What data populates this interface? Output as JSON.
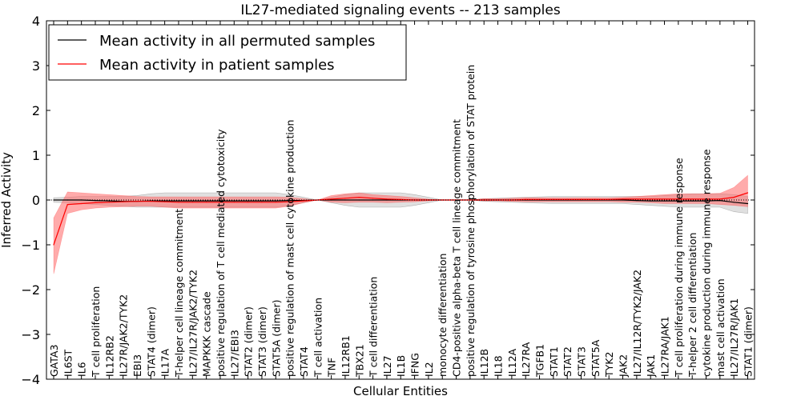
{
  "chart_data": {
    "type": "line",
    "title": "IL27-mediated signaling events -- 213 samples",
    "xlabel": "Cellular Entities",
    "ylabel": "Inferred Activity",
    "ylim": [
      -4,
      4
    ],
    "yticks": [
      -4,
      -3,
      -2,
      -1,
      0,
      1,
      2,
      3,
      4
    ],
    "ytick_labels": [
      "−4",
      "−3",
      "−2",
      "−1",
      "0",
      "1",
      "2",
      "3",
      "4"
    ],
    "legend_position": "top-left",
    "categories": [
      "GATA3",
      "IL6ST",
      "IL6",
      "T cell proliferation",
      "IL12RB2",
      "IL27R/JAK2/TYK2",
      "EBI3",
      "STAT4 (dimer)",
      "IL17A",
      "T-helper cell lineage commitment",
      "IL27/IL27R/JAK2/TYK2",
      "MAPKKK cascade",
      "positive regulation of T cell mediated cytotoxicity",
      "IL27/EBI3",
      "STAT2 (dimer)",
      "STAT3 (dimer)",
      "STAT5A (dimer)",
      "positive regulation of mast cell cytokine production",
      "STAT4",
      "T cell activation",
      "TNF",
      "IL12RB1",
      "TBX21",
      "T cell differentiation",
      "IL27",
      "IL1B",
      "IFNG",
      "IL2",
      "monocyte differentiation",
      "CD4-positive alpha-beta T cell lineage commitment",
      "positive regulation of tyrosine phosphorylation of STAT protein",
      "IL12B",
      "IL18",
      "IL12A",
      "IL27RA",
      "TGFB1",
      "STAT1",
      "STAT2",
      "STAT3",
      "STAT5A",
      "TYK2",
      "JAK2",
      "IL27/IL12R/TYK2/JAK2",
      "JAK1",
      "IL27RA/JAK1",
      "T cell proliferation during immune response",
      "T-helper 2 cell differentiation",
      "cytokine production during immune response",
      "mast cell activation",
      "IL27/IL27R/JAK1",
      "STAT1 (dimer)"
    ],
    "series": [
      {
        "name": "Mean activity in all permuted samples",
        "color": "#000000",
        "band_color": "#bbbbbb",
        "values": [
          0.0,
          0.0,
          0.0,
          -0.01,
          -0.02,
          -0.03,
          -0.03,
          -0.02,
          -0.02,
          -0.02,
          -0.02,
          -0.02,
          -0.02,
          -0.02,
          -0.02,
          -0.02,
          -0.02,
          -0.01,
          -0.01,
          0.0,
          0.0,
          0.0,
          0.0,
          0.0,
          0.0,
          0.0,
          0.0,
          0.0,
          0.0,
          0.0,
          0.0,
          0.0,
          0.0,
          0.0,
          0.0,
          0.0,
          0.0,
          0.0,
          0.0,
          0.0,
          0.0,
          0.0,
          -0.01,
          -0.02,
          -0.02,
          -0.02,
          -0.02,
          -0.02,
          -0.01,
          -0.05,
          -0.08
        ],
        "lower": [
          -0.05,
          -0.06,
          -0.08,
          -0.1,
          -0.12,
          -0.14,
          -0.16,
          -0.16,
          -0.16,
          -0.16,
          -0.16,
          -0.16,
          -0.16,
          -0.16,
          -0.16,
          -0.16,
          -0.16,
          -0.12,
          -0.06,
          0.0,
          -0.06,
          -0.12,
          -0.16,
          -0.16,
          -0.16,
          -0.16,
          -0.12,
          -0.06,
          0.0,
          0.0,
          0.0,
          -0.03,
          -0.04,
          -0.05,
          -0.06,
          -0.07,
          -0.08,
          -0.08,
          -0.08,
          -0.08,
          -0.08,
          -0.08,
          -0.1,
          -0.12,
          -0.14,
          -0.16,
          -0.16,
          -0.16,
          -0.16,
          -0.26,
          -0.3
        ],
        "upper": [
          0.05,
          0.06,
          0.08,
          0.08,
          0.08,
          0.08,
          0.1,
          0.14,
          0.16,
          0.16,
          0.16,
          0.16,
          0.16,
          0.16,
          0.16,
          0.16,
          0.16,
          0.12,
          0.06,
          0.0,
          0.06,
          0.12,
          0.16,
          0.16,
          0.16,
          0.16,
          0.12,
          0.06,
          0.0,
          0.0,
          0.0,
          0.03,
          0.04,
          0.05,
          0.06,
          0.07,
          0.08,
          0.08,
          0.08,
          0.08,
          0.08,
          0.08,
          0.08,
          0.08,
          0.1,
          0.12,
          0.14,
          0.14,
          0.14,
          0.12,
          0.08
        ]
      },
      {
        "name": "Mean activity in patient samples",
        "color": "#ff0000",
        "band_color": "#ff6666",
        "values": [
          -1.0,
          -0.1,
          -0.08,
          -0.06,
          -0.05,
          -0.04,
          -0.03,
          -0.03,
          -0.04,
          -0.05,
          -0.05,
          -0.05,
          -0.05,
          -0.05,
          -0.05,
          -0.05,
          -0.05,
          -0.04,
          -0.02,
          0.0,
          0.02,
          0.04,
          0.06,
          0.04,
          0.02,
          0.01,
          0.0,
          0.0,
          0.0,
          0.0,
          0.0,
          0.0,
          0.0,
          0.0,
          0.01,
          0.01,
          0.01,
          0.01,
          0.01,
          0.01,
          0.01,
          0.02,
          0.02,
          0.02,
          0.02,
          0.02,
          0.02,
          0.02,
          0.02,
          0.06,
          0.16
        ],
        "lower": [
          -1.65,
          -0.3,
          -0.22,
          -0.18,
          -0.16,
          -0.15,
          -0.14,
          -0.14,
          -0.16,
          -0.18,
          -0.18,
          -0.18,
          -0.18,
          -0.18,
          -0.18,
          -0.18,
          -0.18,
          -0.14,
          -0.06,
          0.0,
          -0.05,
          -0.06,
          -0.05,
          -0.05,
          -0.06,
          -0.05,
          -0.04,
          -0.02,
          0.0,
          0.0,
          0.0,
          -0.02,
          -0.02,
          -0.03,
          -0.04,
          -0.04,
          -0.04,
          -0.04,
          -0.04,
          -0.04,
          -0.04,
          -0.05,
          -0.05,
          -0.06,
          -0.08,
          -0.08,
          -0.08,
          -0.08,
          -0.1,
          -0.12,
          -0.15
        ],
        "upper": [
          -0.4,
          0.18,
          0.16,
          0.14,
          0.12,
          0.1,
          0.08,
          0.07,
          0.07,
          0.07,
          0.07,
          0.07,
          0.07,
          0.07,
          0.07,
          0.07,
          0.07,
          0.06,
          0.03,
          0.0,
          0.1,
          0.14,
          0.16,
          0.12,
          0.1,
          0.08,
          0.05,
          0.02,
          0.0,
          0.0,
          0.0,
          0.03,
          0.03,
          0.04,
          0.05,
          0.05,
          0.05,
          0.05,
          0.05,
          0.05,
          0.05,
          0.06,
          0.08,
          0.1,
          0.12,
          0.14,
          0.14,
          0.14,
          0.15,
          0.28,
          0.55
        ]
      }
    ]
  }
}
